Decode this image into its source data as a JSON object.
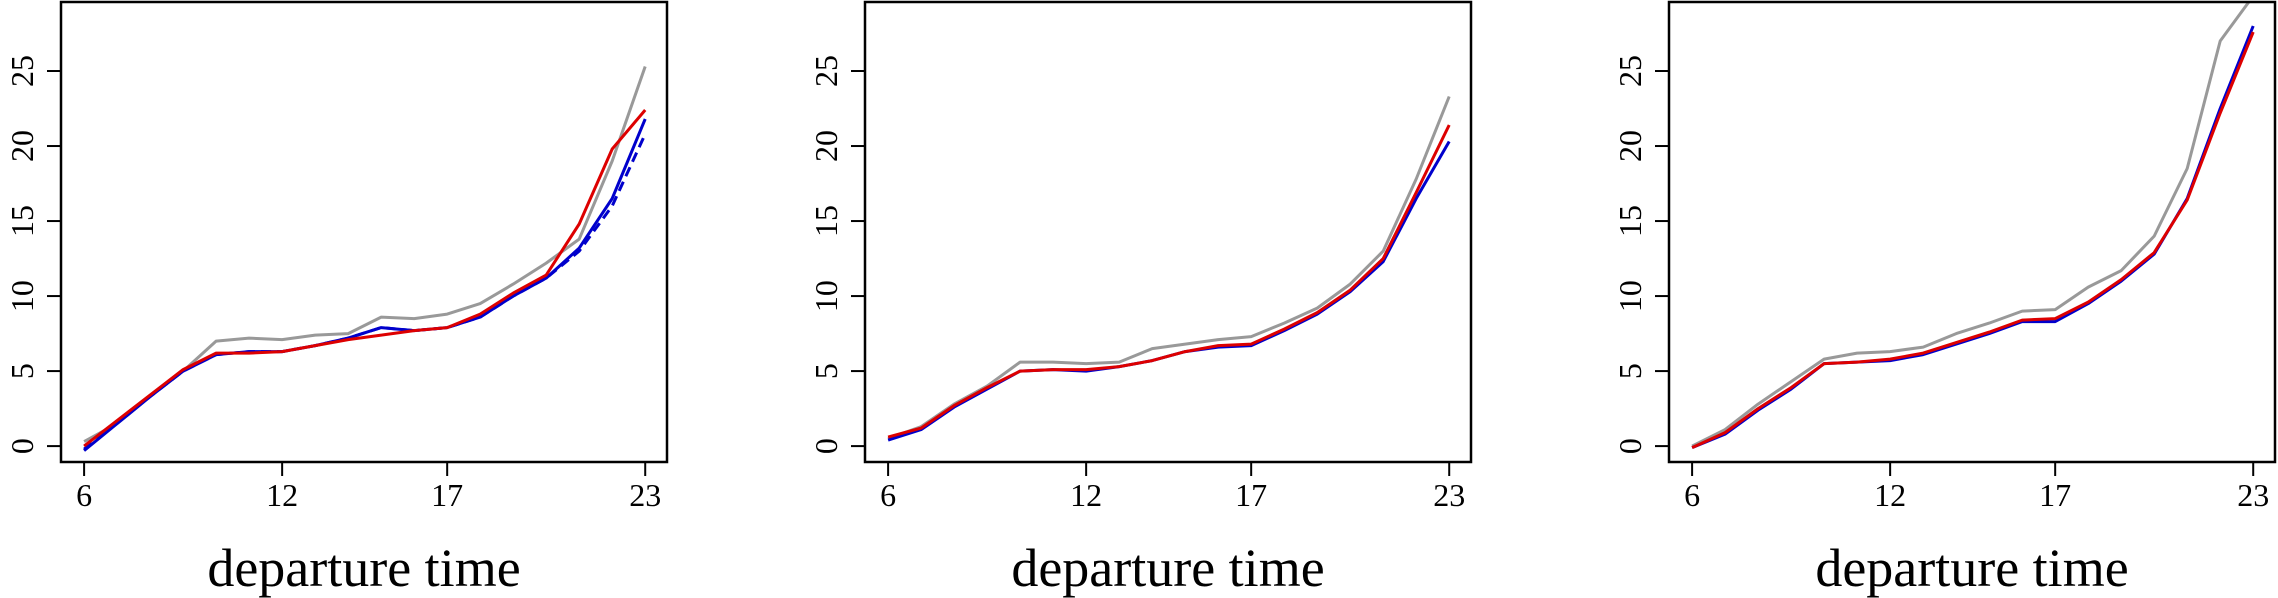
{
  "chart_data": [
    {
      "type": "line",
      "xlabel": "departure time",
      "x": [
        6,
        7,
        8,
        9,
        10,
        11,
        12,
        13,
        14,
        15,
        16,
        17,
        18,
        19,
        20,
        21,
        22,
        23
      ],
      "xlim": [
        5.3,
        23.66
      ],
      "ylim": [
        -1.06,
        29.6
      ],
      "xticks": [
        6,
        12,
        17,
        23
      ],
      "yticks": [
        0,
        5,
        10,
        15,
        20,
        25
      ],
      "series": [
        {
          "color": "#999999",
          "values": [
            0.3,
            1.5,
            3.3,
            5,
            7,
            7.2,
            7.1,
            7.4,
            7.5,
            8.6,
            8.5,
            8.8,
            9.5,
            10.8,
            12.2,
            13.8,
            19,
            25.3
          ]
        },
        {
          "color": "#0000cc",
          "dashed": true,
          "values": [
            -0.2,
            1.6,
            3.3,
            5,
            6.1,
            6.3,
            6.3,
            6.7,
            7.2,
            7.9,
            7.7,
            7.9,
            8.6,
            10,
            11.2,
            13,
            16,
            20.8
          ]
        },
        {
          "color": "#0000cc",
          "values": [
            -0.3,
            1.5,
            3.3,
            5,
            6.1,
            6.3,
            6.3,
            6.7,
            7.2,
            7.9,
            7.7,
            7.9,
            8.6,
            10,
            11.2,
            13.2,
            16.5,
            21.8
          ]
        },
        {
          "color": "#dd0000",
          "values": [
            0,
            1.7,
            3.4,
            5.1,
            6.2,
            6.2,
            6.3,
            6.7,
            7.1,
            7.4,
            7.7,
            7.9,
            8.8,
            10.2,
            11.4,
            14.8,
            19.8,
            22.4
          ]
        }
      ]
    },
    {
      "type": "line",
      "xlabel": "departure time",
      "x": [
        6,
        7,
        8,
        9,
        10,
        11,
        12,
        13,
        14,
        15,
        16,
        17,
        18,
        19,
        20,
        21,
        22,
        23
      ],
      "xlim": [
        5.3,
        23.66
      ],
      "ylim": [
        -1.06,
        29.6
      ],
      "xticks": [
        6,
        12,
        17,
        23
      ],
      "yticks": [
        0,
        5,
        10,
        15,
        20,
        25
      ],
      "series": [
        {
          "color": "#999999",
          "values": [
            0.5,
            1.3,
            2.8,
            4,
            5.6,
            5.6,
            5.5,
            5.6,
            6.5,
            6.8,
            7.1,
            7.3,
            8.2,
            9.2,
            10.8,
            13,
            17.8,
            23.3
          ]
        },
        {
          "color": "#0000cc",
          "values": [
            0.4,
            1.1,
            2.6,
            3.8,
            5,
            5.1,
            5,
            5.3,
            5.7,
            6.3,
            6.6,
            6.7,
            7.7,
            8.8,
            10.3,
            12.3,
            16.5,
            20.3
          ]
        },
        {
          "color": "#dd0000",
          "values": [
            0.6,
            1.2,
            2.7,
            3.9,
            5,
            5.1,
            5.1,
            5.3,
            5.7,
            6.3,
            6.7,
            6.8,
            7.8,
            8.9,
            10.4,
            12.5,
            16.9,
            21.4
          ]
        }
      ]
    },
    {
      "type": "line",
      "xlabel": "departure time",
      "x": [
        6,
        7,
        8,
        9,
        10,
        11,
        12,
        13,
        14,
        15,
        16,
        17,
        18,
        19,
        20,
        21,
        22,
        23
      ],
      "xlim": [
        5.3,
        23.66
      ],
      "ylim": [
        -1.06,
        29.6
      ],
      "xticks": [
        6,
        12,
        17,
        23
      ],
      "yticks": [
        0,
        5,
        10,
        15,
        20,
        25
      ],
      "series": [
        {
          "color": "#999999",
          "values": [
            0,
            1.1,
            2.8,
            4.3,
            5.8,
            6.2,
            6.3,
            6.6,
            7.5,
            8.2,
            9,
            9.1,
            10.6,
            11.7,
            14,
            18.5,
            27,
            30
          ]
        },
        {
          "color": "#0000cc",
          "values": [
            -0.1,
            0.8,
            2.4,
            3.8,
            5.5,
            5.6,
            5.7,
            6.1,
            6.8,
            7.5,
            8.3,
            8.3,
            9.5,
            11,
            12.8,
            16.5,
            22.5,
            28
          ]
        },
        {
          "color": "#dd0000",
          "values": [
            -0.1,
            0.9,
            2.5,
            3.9,
            5.5,
            5.6,
            5.8,
            6.2,
            6.9,
            7.6,
            8.4,
            8.5,
            9.6,
            11.1,
            12.9,
            16.4,
            22.2,
            27.6
          ]
        }
      ]
    }
  ]
}
